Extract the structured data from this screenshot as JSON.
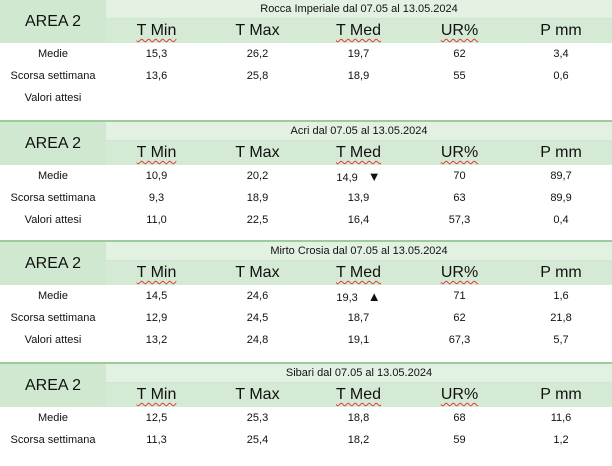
{
  "columns": [
    "T Min",
    "T Max",
    "T Med",
    "UR%",
    "P mm"
  ],
  "blocks": [
    {
      "area": "AREA 2",
      "title": "Rocca Imperiale  dal 07.05 al 13.05.2024",
      "rows": [
        {
          "label": "Medie",
          "values": [
            "15,3",
            "26,2",
            "19,7",
            "62",
            "3,4"
          ],
          "trend": ""
        },
        {
          "label": "Scorsa settimana",
          "values": [
            "13,6",
            "25,8",
            "18,9",
            "55",
            "0,6"
          ],
          "trend": ""
        },
        {
          "label": "Valori attesi",
          "values": [
            "",
            "",
            "",
            "",
            ""
          ],
          "trend": ""
        }
      ]
    },
    {
      "area": "AREA 2",
      "title": "Acri dal 07.05 al 13.05.2024",
      "rows": [
        {
          "label": "Medie",
          "values": [
            "10,9",
            "20,2",
            "14,9",
            "70",
            "89,7"
          ],
          "trend": "▼"
        },
        {
          "label": "Scorsa settimana",
          "values": [
            "9,3",
            "18,9",
            "13,9",
            "63",
            "89,9"
          ],
          "trend": ""
        },
        {
          "label": "Valori attesi",
          "values": [
            "11,0",
            "22,5",
            "16,4",
            "57,3",
            "0,4"
          ],
          "trend": ""
        }
      ]
    },
    {
      "area": "AREA 2",
      "title": "Mirto Crosia dal 07.05 al 13.05.2024",
      "rows": [
        {
          "label": "Medie",
          "values": [
            "14,5",
            "24,6",
            "19,3",
            "71",
            "1,6"
          ],
          "trend": "▲"
        },
        {
          "label": "Scorsa settimana",
          "values": [
            "12,9",
            "24,5",
            "18,7",
            "62",
            "21,8"
          ],
          "trend": ""
        },
        {
          "label": "Valori attesi",
          "values": [
            "13,2",
            "24,8",
            "19,1",
            "67,3",
            "5,7"
          ],
          "trend": ""
        }
      ]
    },
    {
      "area": "AREA 2",
      "title": "Sibari dal 07.05 al 13.05.2024",
      "rows": [
        {
          "label": "Medie",
          "values": [
            "12,5",
            "25,3",
            "18,8",
            "68",
            "11,6"
          ],
          "trend": ""
        },
        {
          "label": "Scorsa settimana",
          "values": [
            "11,3",
            "25,4",
            "18,2",
            "59",
            "1,2"
          ],
          "trend": ""
        }
      ]
    }
  ]
}
